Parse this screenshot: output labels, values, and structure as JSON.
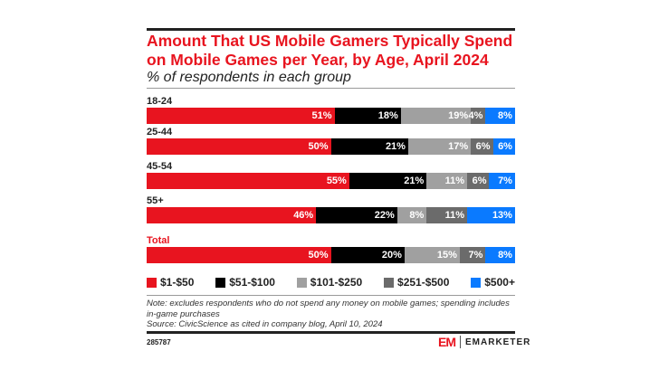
{
  "chart_data": {
    "type": "bar",
    "orientation": "horizontal",
    "stacked": true,
    "title": "Amount That US Mobile Gamers Typically Spend on Mobile Games per Year, by Age, April 2024",
    "subtitle": "% of respondents in each group",
    "categories": [
      "18-24",
      "25-44",
      "45-54",
      "55+",
      "Total"
    ],
    "series": [
      {
        "name": "$1-$50",
        "color": "#e8141f",
        "values": [
          51,
          50,
          55,
          46,
          50
        ]
      },
      {
        "name": "$51-$100",
        "color": "#000000",
        "values": [
          18,
          21,
          21,
          22,
          20
        ]
      },
      {
        "name": "$101-$250",
        "color": "#a0a0a0",
        "values": [
          19,
          17,
          11,
          8,
          15
        ]
      },
      {
        "name": "$251-$500",
        "color": "#6b6b6b",
        "values": [
          4,
          6,
          6,
          11,
          7
        ]
      },
      {
        "name": "$500+",
        "color": "#0a7aff",
        "values": [
          8,
          6,
          7,
          13,
          8
        ]
      }
    ],
    "value_suffix": "%",
    "legend_position": "bottom",
    "highlight_category": "Total",
    "highlight_color": "#e8141f"
  },
  "notes": {
    "note": "Note: excludes respondents who do not spend any money on mobile games; spending includes in-game purchases",
    "source": "Source: CivicScience as cited in company blog, April 10, 2024"
  },
  "footer": {
    "chart_id": "285787",
    "brand": "EMARKETER",
    "brand_mark": "EM"
  }
}
